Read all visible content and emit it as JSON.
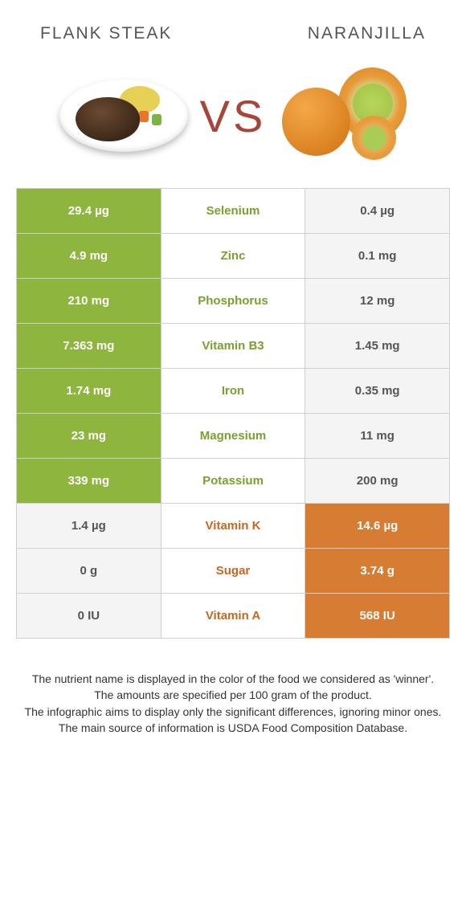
{
  "colors": {
    "left_winner": "#8eb53e",
    "right_winner": "#d77c33",
    "mid_bg": "#ffffff",
    "loser_bg": "#f4f4f4",
    "nutrient_left_color": "#7aa02e",
    "nutrient_right_color": "#c76820"
  },
  "header": {
    "left_title": "FLANK STEAK",
    "right_title": "NARANJILLA",
    "vs": "VS"
  },
  "rows": [
    {
      "nutrient": "Selenium",
      "left": "29.4 µg",
      "right": "0.4 µg",
      "winner": "left"
    },
    {
      "nutrient": "Zinc",
      "left": "4.9 mg",
      "right": "0.1 mg",
      "winner": "left"
    },
    {
      "nutrient": "Phosphorus",
      "left": "210 mg",
      "right": "12 mg",
      "winner": "left"
    },
    {
      "nutrient": "Vitamin B3",
      "left": "7.363 mg",
      "right": "1.45 mg",
      "winner": "left"
    },
    {
      "nutrient": "Iron",
      "left": "1.74 mg",
      "right": "0.35 mg",
      "winner": "left"
    },
    {
      "nutrient": "Magnesium",
      "left": "23 mg",
      "right": "11 mg",
      "winner": "left"
    },
    {
      "nutrient": "Potassium",
      "left": "339 mg",
      "right": "200 mg",
      "winner": "left"
    },
    {
      "nutrient": "Vitamin K",
      "left": "1.4 µg",
      "right": "14.6 µg",
      "winner": "right"
    },
    {
      "nutrient": "Sugar",
      "left": "0 g",
      "right": "3.74 g",
      "winner": "right"
    },
    {
      "nutrient": "Vitamin A",
      "left": "0 IU",
      "right": "568 IU",
      "winner": "right"
    }
  ],
  "footer": {
    "line1": "The nutrient name is displayed in the color of the food we considered as 'winner'.",
    "line2": "The amounts are specified per 100 gram of the product.",
    "line3": "The infographic aims to display only the significant differences, ignoring minor ones.",
    "line4": "The main source of information is USDA Food Composition Database."
  }
}
